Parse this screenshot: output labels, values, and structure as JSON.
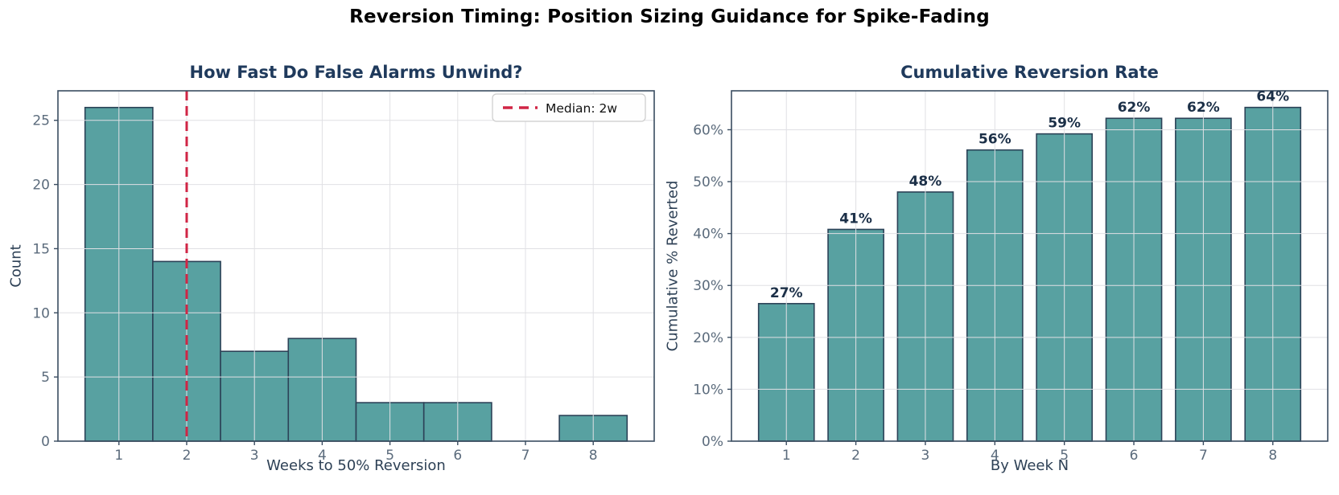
{
  "figure": {
    "suptitle": "Reversion Timing: Position Sizing Guidance for Spike-Fading"
  },
  "colors": {
    "background": "#ffffff",
    "suptitle": "#000000",
    "title": "#1f3a5c",
    "axis_label": "#2e4156",
    "tick_label": "#5b6b7c",
    "spine": "#3a4d61",
    "grid": "#e0e0e4",
    "bar_fill": "#58a1a1",
    "bar_edge": "#2c4257",
    "median_line": "#d02545",
    "value_label": "#1b2f47",
    "legend_bg": "#fefefe",
    "legend_border": "#cccccc",
    "legend_text": "#111111"
  },
  "chart_data": [
    {
      "type": "bar",
      "subtype": "histogram",
      "title": "How Fast Do False Alarms Unwind?",
      "xlabel": "Weeks to 50% Reversion",
      "ylabel": "Count",
      "categories": [
        1,
        2,
        3,
        4,
        5,
        6,
        7,
        8
      ],
      "values": [
        26,
        14,
        7,
        8,
        3,
        3,
        0,
        2
      ],
      "bar_width": 1,
      "xlim": [
        0.1,
        8.9
      ],
      "ylim": [
        0,
        27.3
      ],
      "yticks": [
        0,
        5,
        10,
        15,
        20,
        25
      ],
      "ytick_suffix": "",
      "grid": true,
      "median_line": {
        "x": 2,
        "style": "dashed"
      },
      "legend": {
        "position": "upper-right",
        "entries": [
          {
            "label": "Median: 2w",
            "marker": "dashed-line"
          }
        ]
      }
    },
    {
      "type": "bar",
      "title": "Cumulative Reversion Rate",
      "xlabel": "By Week N",
      "ylabel": "Cumulative % Reverted",
      "categories": [
        1,
        2,
        3,
        4,
        5,
        6,
        7,
        8
      ],
      "values": [
        26.5,
        40.8,
        48.0,
        56.1,
        59.2,
        62.2,
        62.2,
        64.3
      ],
      "bar_labels": [
        "27%",
        "41%",
        "48%",
        "56%",
        "59%",
        "62%",
        "62%",
        "64%"
      ],
      "bar_width": 0.8,
      "xlim": [
        0.21,
        8.79
      ],
      "ylim": [
        0,
        67.5
      ],
      "yticks": [
        0,
        10,
        20,
        30,
        40,
        50,
        60
      ],
      "ytick_suffix": "%",
      "grid": true,
      "legend": null
    }
  ]
}
